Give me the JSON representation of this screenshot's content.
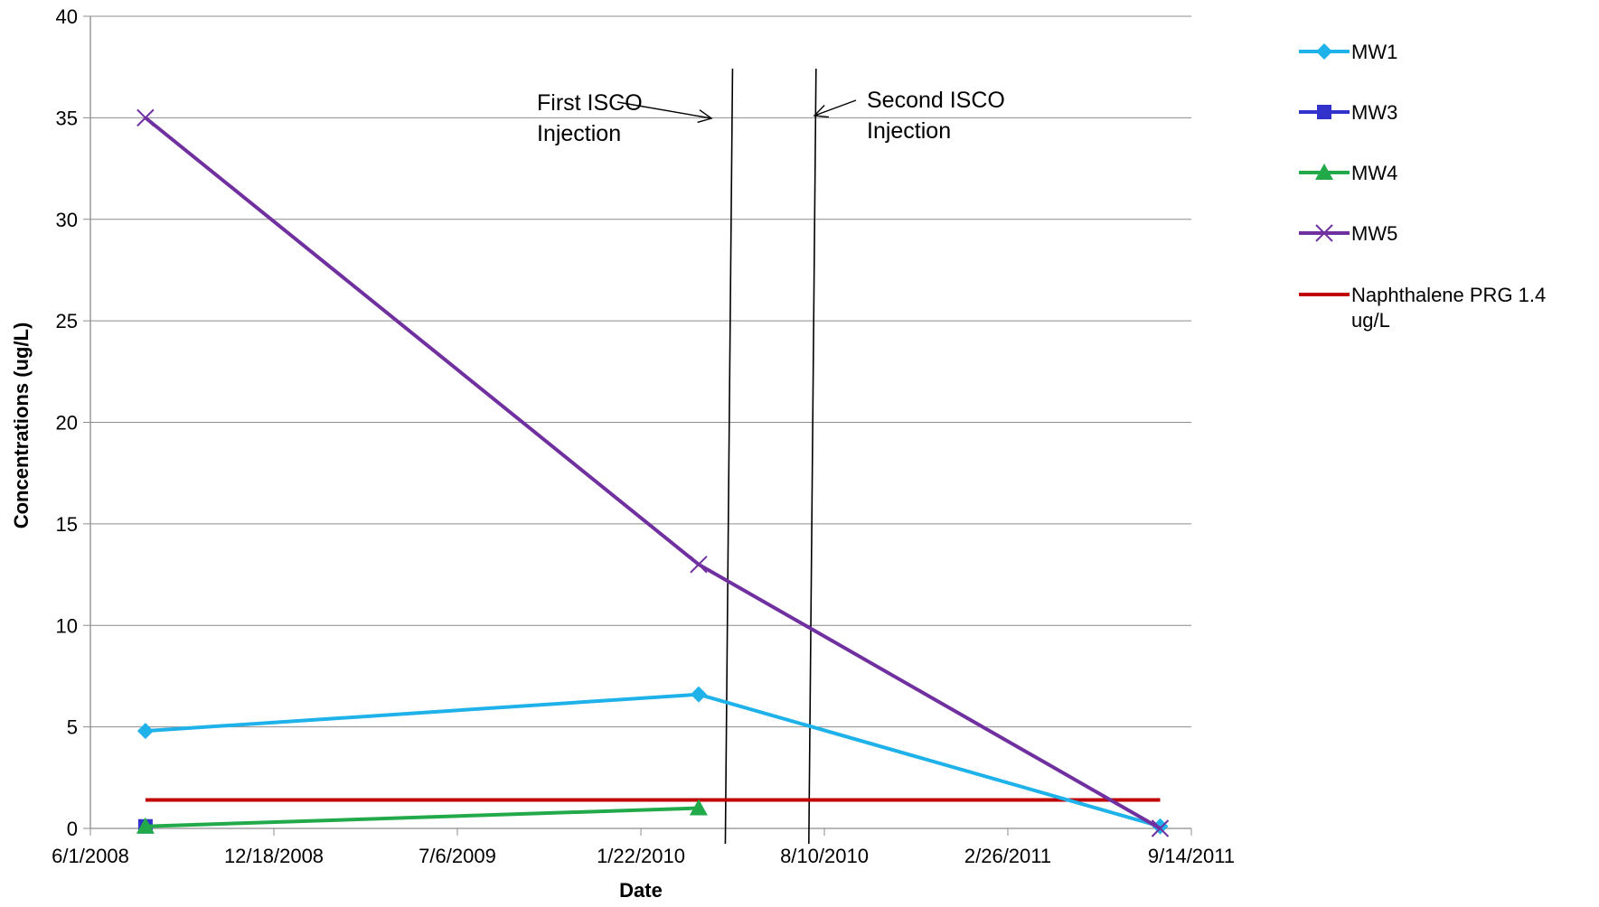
{
  "chart_data": {
    "type": "line",
    "title": "",
    "xlabel": "Date",
    "ylabel": "Concentrations (ug/L)",
    "x_ticks": [
      "6/1/2008",
      "12/18/2008",
      "7/6/2009",
      "1/22/2010",
      "8/10/2010",
      "2/26/2011",
      "9/14/2011"
    ],
    "y_ticks": [
      "0",
      "5",
      "10",
      "15",
      "20",
      "25",
      "30",
      "35",
      "40"
    ],
    "xlim": [
      "2008-06-01",
      "2011-09-14"
    ],
    "ylim": [
      0,
      40
    ],
    "grid": "horizontal",
    "legend_position": "right",
    "series": [
      {
        "name": "MW1",
        "color": "#1FB2EA",
        "marker": "diamond",
        "points": [
          {
            "x": "2008-07-31",
            "y": 4.8
          },
          {
            "x": "2010-03-26",
            "y": 6.6
          },
          {
            "x": "2011-08-11",
            "y": 0.1
          }
        ]
      },
      {
        "name": "MW3",
        "color": "#3333CC",
        "marker": "square",
        "points": [
          {
            "x": "2008-07-31",
            "y": 0.1
          }
        ]
      },
      {
        "name": "MW4",
        "color": "#22AA4A",
        "marker": "triangle",
        "points": [
          {
            "x": "2008-07-31",
            "y": 0.1
          },
          {
            "x": "2010-03-26",
            "y": 1.0
          }
        ]
      },
      {
        "name": "MW5",
        "color": "#7030A0",
        "marker": "x",
        "points": [
          {
            "x": "2008-07-31",
            "y": 35
          },
          {
            "x": "2010-03-26",
            "y": 13
          },
          {
            "x": "2011-08-11",
            "y": 0
          }
        ]
      },
      {
        "name": "Naphthalene PRG 1.4 ug/L",
        "color": "#C00000",
        "marker": "none",
        "points": [
          {
            "x": "2008-07-31",
            "y": 1.4
          },
          {
            "x": "2011-08-11",
            "y": 1.4
          }
        ]
      }
    ],
    "annotations": [
      {
        "label_lines": [
          "First ISCO",
          "Injection"
        ],
        "x": "2010-04-28"
      },
      {
        "label_lines": [
          "Second ISCO",
          "Injection"
        ],
        "x": "2010-07-28"
      }
    ]
  }
}
